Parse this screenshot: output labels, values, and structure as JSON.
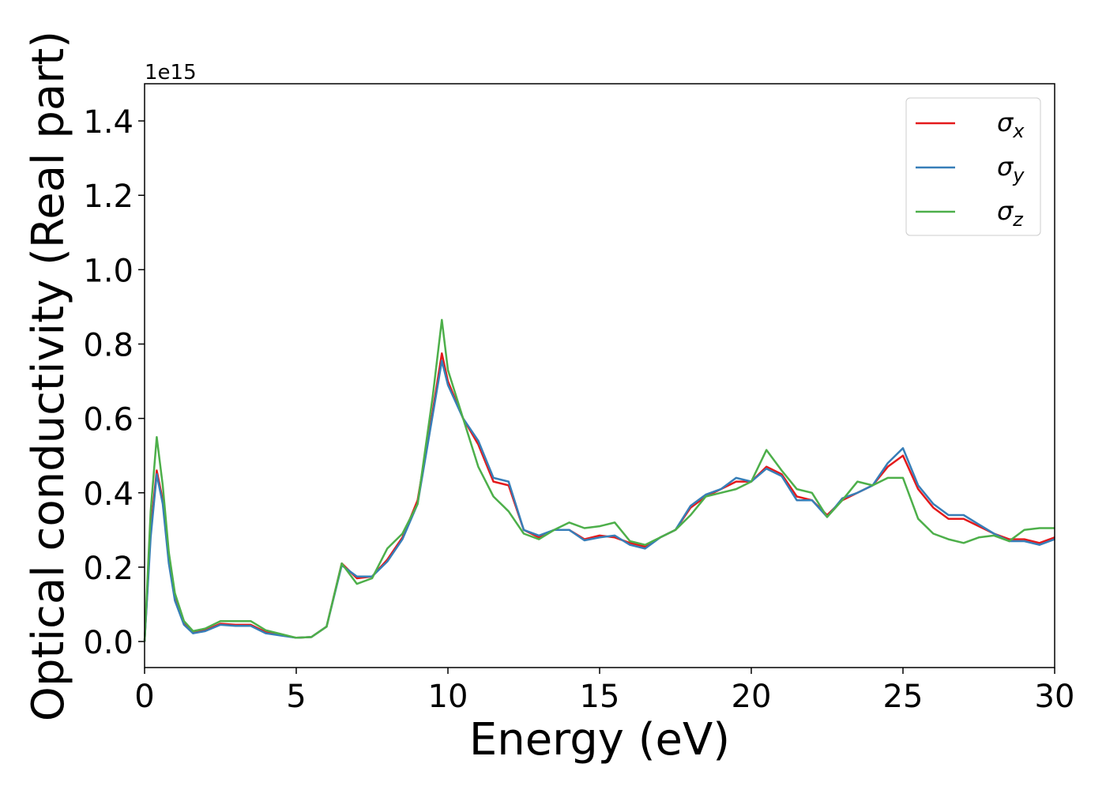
{
  "chart_data": {
    "type": "line",
    "xlabel": "Energy (eV)",
    "ylabel": "Optical conductivity (Real part)",
    "y_offset_label": "1e15",
    "xlim": [
      0,
      30
    ],
    "ylim": [
      -0.07,
      1.5
    ],
    "xticks": [
      0,
      5,
      10,
      15,
      20,
      25,
      30
    ],
    "yticks": [
      {
        "value": 0,
        "label": "0.0"
      },
      0.2,
      0.4,
      0.6,
      0.8,
      {
        "value": 1,
        "label": "1.0"
      },
      1.2,
      1.4
    ],
    "grid": false,
    "legend": "upper right",
    "x": [
      0,
      0.2,
      0.4,
      0.6,
      0.8,
      1,
      1.3,
      1.6,
      2,
      2.5,
      3,
      3.5,
      4,
      4.5,
      5,
      5.5,
      6,
      6.5,
      7,
      7.5,
      8,
      8.5,
      9,
      9.5,
      9.8,
      10,
      10.5,
      11,
      11.5,
      12,
      12.5,
      13,
      13.5,
      14,
      14.5,
      15,
      15.5,
      16,
      16.5,
      17,
      17.5,
      18,
      18.5,
      19,
      19.5,
      20,
      20.5,
      21,
      21.5,
      22,
      22.5,
      23,
      23.5,
      24,
      24.5,
      25,
      25.5,
      26,
      26.5,
      27,
      27.5,
      28,
      28.5,
      29,
      29.5,
      30
    ],
    "series": [
      {
        "name": "σx",
        "color": "#e41a1c",
        "values": [
          0,
          0.3,
          0.46,
          0.38,
          0.22,
          0.12,
          0.05,
          0.025,
          0.03,
          0.048,
          0.045,
          0.045,
          0.025,
          0.018,
          0.01,
          0.012,
          0.04,
          0.21,
          0.17,
          0.175,
          0.22,
          0.28,
          0.38,
          0.62,
          0.775,
          0.7,
          0.6,
          0.53,
          0.43,
          0.42,
          0.3,
          0.28,
          0.3,
          0.3,
          0.275,
          0.285,
          0.28,
          0.265,
          0.255,
          0.28,
          0.3,
          0.36,
          0.39,
          0.41,
          0.43,
          0.43,
          0.47,
          0.45,
          0.39,
          0.38,
          0.34,
          0.38,
          0.4,
          0.42,
          0.47,
          0.5,
          0.41,
          0.36,
          0.33,
          0.33,
          0.31,
          0.29,
          0.275,
          0.275,
          0.265,
          0.28
        ]
      },
      {
        "name": "σy",
        "color": "#377eb8",
        "values": [
          0,
          0.28,
          0.45,
          0.37,
          0.21,
          0.11,
          0.045,
          0.022,
          0.028,
          0.045,
          0.042,
          0.042,
          0.022,
          0.016,
          0.01,
          0.012,
          0.04,
          0.205,
          0.175,
          0.175,
          0.215,
          0.275,
          0.37,
          0.61,
          0.755,
          0.69,
          0.6,
          0.54,
          0.44,
          0.43,
          0.3,
          0.285,
          0.3,
          0.3,
          0.272,
          0.28,
          0.285,
          0.26,
          0.25,
          0.28,
          0.3,
          0.365,
          0.395,
          0.41,
          0.44,
          0.43,
          0.465,
          0.445,
          0.38,
          0.38,
          0.335,
          0.385,
          0.4,
          0.42,
          0.48,
          0.52,
          0.42,
          0.37,
          0.34,
          0.34,
          0.315,
          0.29,
          0.27,
          0.27,
          0.26,
          0.275
        ]
      },
      {
        "name": "σz",
        "color": "#4daf4a",
        "values": [
          0,
          0.35,
          0.55,
          0.42,
          0.24,
          0.13,
          0.055,
          0.028,
          0.035,
          0.055,
          0.055,
          0.055,
          0.03,
          0.02,
          0.01,
          0.012,
          0.04,
          0.21,
          0.155,
          0.17,
          0.25,
          0.29,
          0.37,
          0.66,
          0.865,
          0.73,
          0.6,
          0.47,
          0.39,
          0.35,
          0.29,
          0.275,
          0.3,
          0.32,
          0.305,
          0.31,
          0.32,
          0.27,
          0.26,
          0.28,
          0.3,
          0.34,
          0.39,
          0.4,
          0.41,
          0.43,
          0.515,
          0.46,
          0.41,
          0.4,
          0.335,
          0.38,
          0.43,
          0.42,
          0.44,
          0.44,
          0.33,
          0.29,
          0.275,
          0.265,
          0.28,
          0.285,
          0.27,
          0.3,
          0.305,
          0.305
        ]
      }
    ]
  }
}
